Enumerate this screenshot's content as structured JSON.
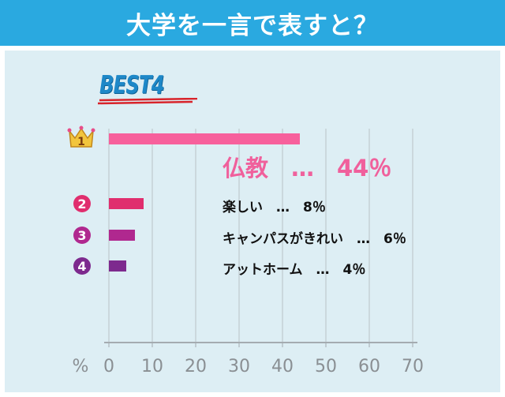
{
  "header": {
    "title": "大学を一言で表すと？"
  },
  "badge": {
    "best_label": "BEST4"
  },
  "colors": {
    "title_bg": "#2aa9e0",
    "panel_bg": "#ddeef4",
    "rank1": "#f7609c",
    "rank2": "#e02e6e",
    "rank3": "#b0288f",
    "rank4": "#7d2a8e"
  },
  "rank_marks": [
    "1",
    "2",
    "3",
    "4"
  ],
  "rank_icons": [
    "crown-icon",
    "number-circle-icon",
    "number-circle-icon",
    "number-circle-icon"
  ],
  "item_labels": [
    "仏教　…　44％",
    "楽しい　…　8％",
    "キャンパスがきれい　…　6％",
    "アットホーム　…　4％"
  ],
  "chart_data": {
    "type": "bar",
    "orientation": "horizontal",
    "categories": [
      "仏教",
      "楽しい",
      "キャンパスがきれい",
      "アットホーム"
    ],
    "values": [
      44,
      8,
      6,
      4
    ],
    "unit": "%",
    "xlabel": "%",
    "xlim": [
      0,
      70
    ],
    "xticks": [
      0,
      10,
      20,
      30,
      40,
      50,
      60,
      70
    ],
    "grid": true
  }
}
